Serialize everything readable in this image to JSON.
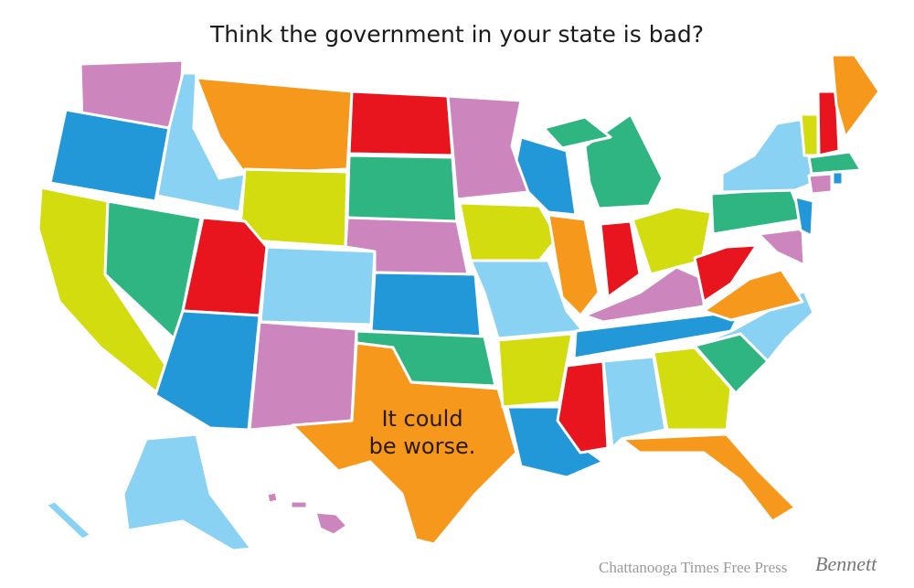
{
  "title": "Think the government in your state is bad?",
  "map": {
    "annotation_lines": [
      "It could",
      "be worse."
    ]
  },
  "credit": {
    "publication": "Chattanooga Times Free Press",
    "artist": "Bennett"
  }
}
